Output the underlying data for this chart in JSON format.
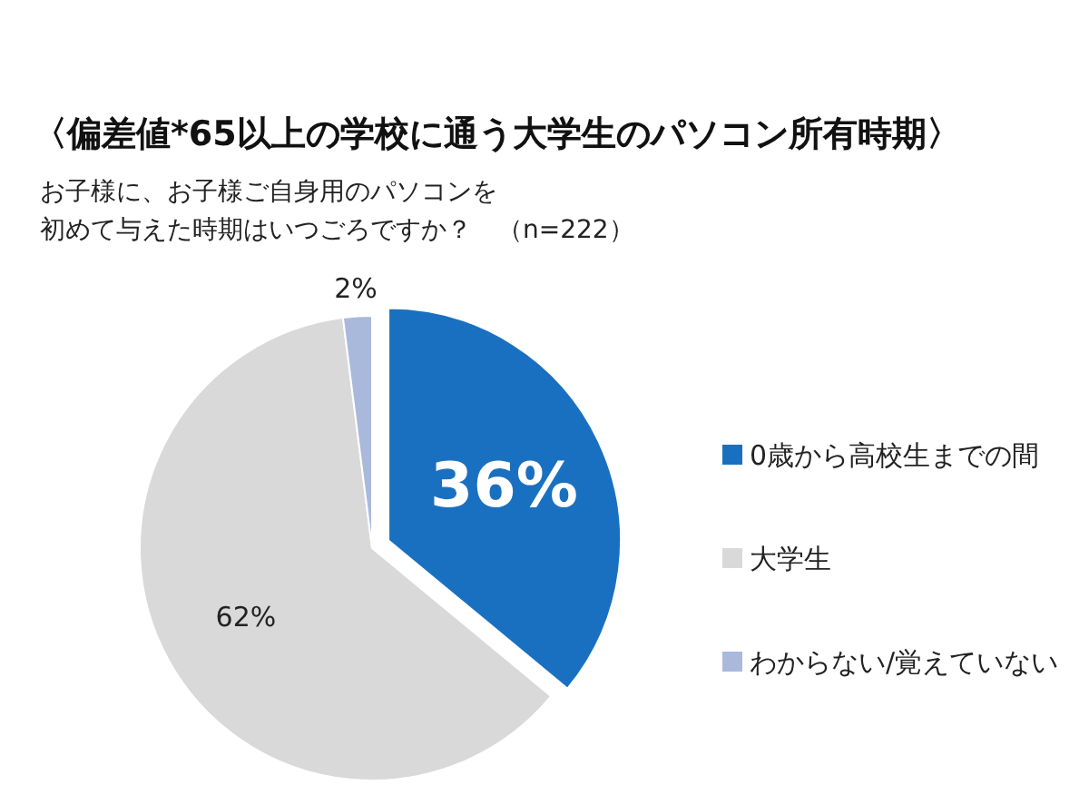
{
  "chart_data": {
    "type": "pie",
    "title": "〈偏差値*65以上の学校に通う大学生のパソコン所有時期〉",
    "subtitle": "お子様に、お子様ご自身用のパソコンを初めて与えた時期はいつごろですか？　（n=222）",
    "categories": [
      "0歳から高校生までの間",
      "大学生",
      "わからない/覚えていない"
    ],
    "values": [
      36,
      62,
      2
    ],
    "colors": [
      "#1a70c0",
      "#d9d9d9",
      "#a9b9dc"
    ],
    "value_labels": [
      "36%",
      "62%",
      "2%"
    ],
    "legend": "right"
  }
}
